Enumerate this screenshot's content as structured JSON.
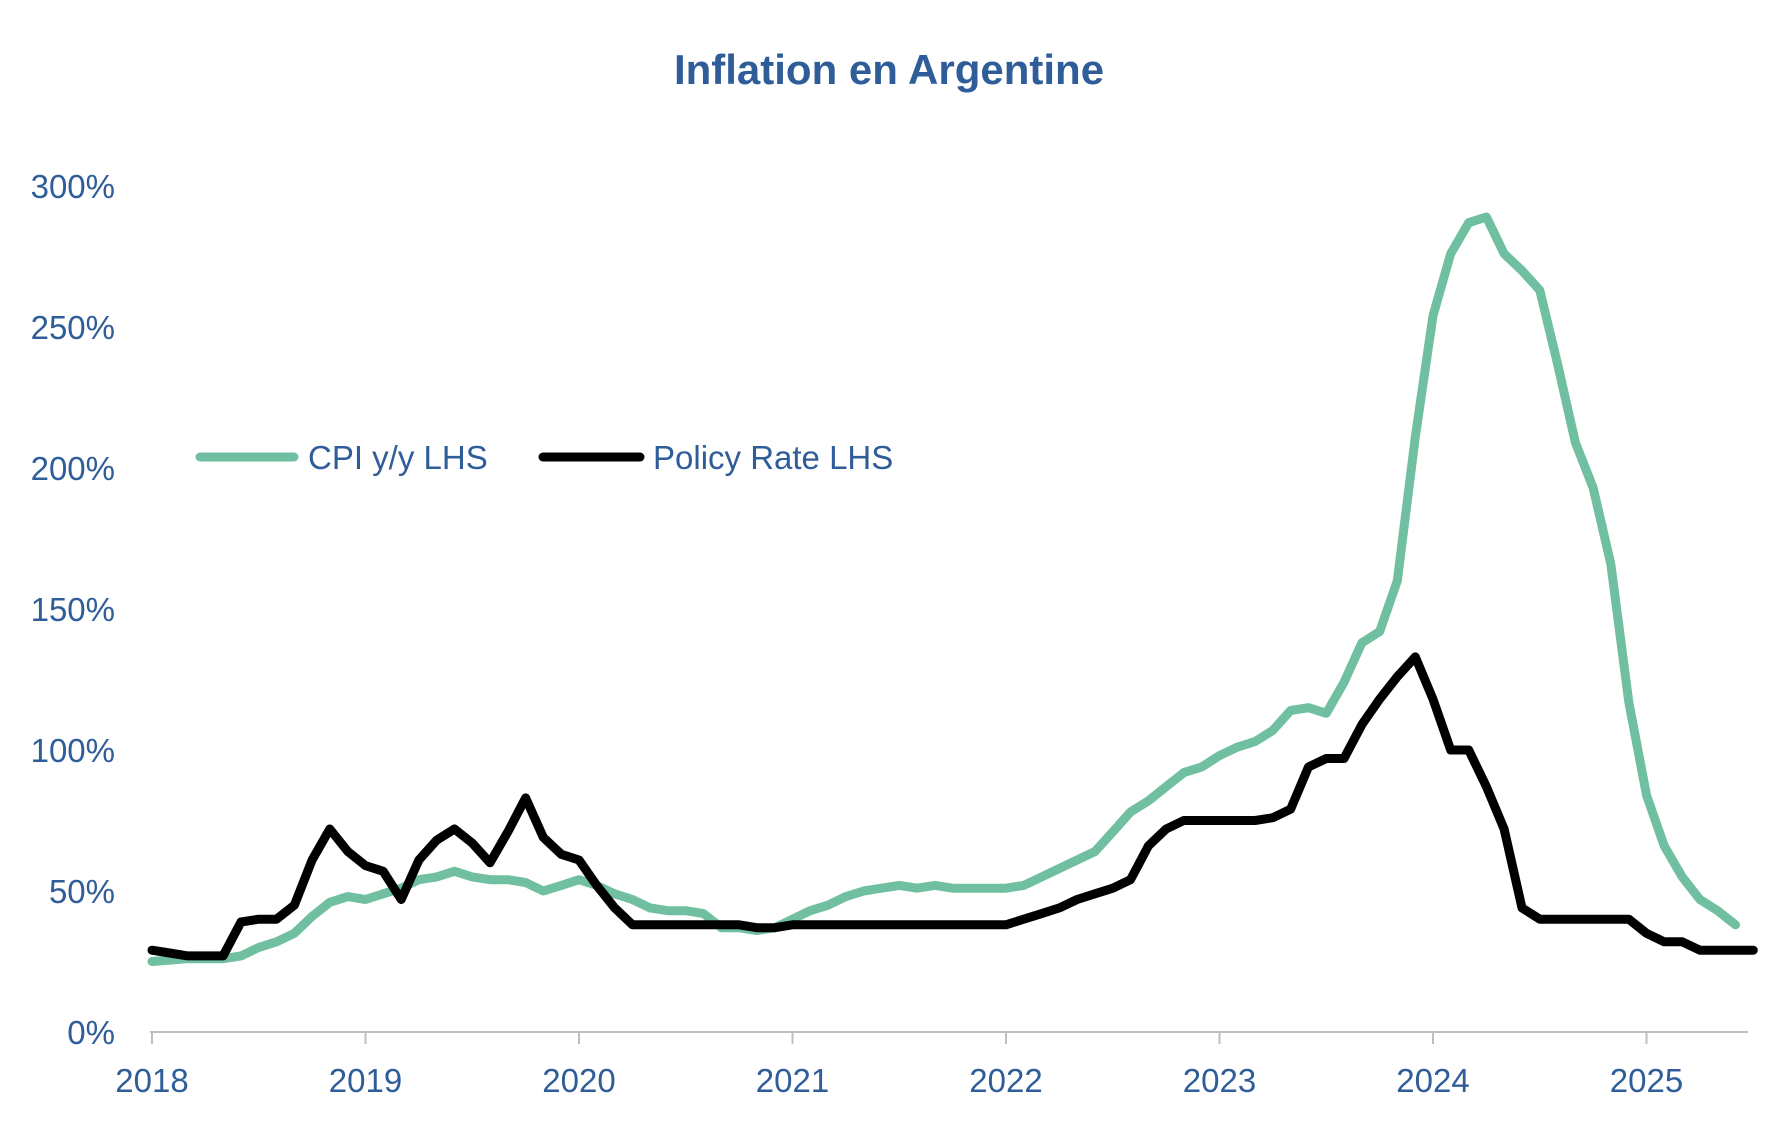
{
  "chart_data": {
    "type": "line",
    "title": "Inflation en Argentine",
    "xlabel": "",
    "ylabel": "",
    "x_ticks": [
      "2018",
      "2019",
      "2020",
      "2021",
      "2022",
      "2023",
      "2024",
      "2025"
    ],
    "y_ticks": [
      "0%",
      "50%",
      "100%",
      "150%",
      "200%",
      "250%",
      "300%"
    ],
    "ylim": [
      0,
      300
    ],
    "xlim": [
      2018.0,
      2025.5
    ],
    "grid": false,
    "legend_position": "upper-left",
    "colors": {
      "title": "#2f5d99",
      "axis_text": "#2f5d99",
      "axis_line": "#bfbfbf"
    },
    "series": [
      {
        "name": "CPI y/y LHS",
        "color": "#6fbfa0",
        "x": [
          2018.0,
          2018.083,
          2018.167,
          2018.25,
          2018.333,
          2018.417,
          2018.5,
          2018.583,
          2018.667,
          2018.75,
          2018.833,
          2018.917,
          2019.0,
          2019.083,
          2019.167,
          2019.25,
          2019.333,
          2019.417,
          2019.5,
          2019.583,
          2019.667,
          2019.75,
          2019.833,
          2019.917,
          2020.0,
          2020.083,
          2020.167,
          2020.25,
          2020.333,
          2020.417,
          2020.5,
          2020.583,
          2020.667,
          2020.75,
          2020.833,
          2020.917,
          2021.0,
          2021.083,
          2021.167,
          2021.25,
          2021.333,
          2021.417,
          2021.5,
          2021.583,
          2021.667,
          2021.75,
          2021.833,
          2021.917,
          2022.0,
          2022.083,
          2022.167,
          2022.25,
          2022.333,
          2022.417,
          2022.5,
          2022.583,
          2022.667,
          2022.75,
          2022.833,
          2022.917,
          2023.0,
          2023.083,
          2023.167,
          2023.25,
          2023.333,
          2023.417,
          2023.5,
          2023.583,
          2023.667,
          2023.75,
          2023.833,
          2023.917,
          2024.0,
          2024.083,
          2024.167,
          2024.25,
          2024.333,
          2024.417,
          2024.5,
          2024.583,
          2024.667,
          2024.75,
          2024.833,
          2024.917,
          2025.0,
          2025.083,
          2025.167,
          2025.25,
          2025.333,
          2025.417
        ],
        "values": [
          25,
          25.5,
          26,
          26,
          26,
          27,
          30,
          32,
          35,
          41,
          46,
          48,
          47,
          49,
          51,
          54,
          55,
          57,
          55,
          54,
          54,
          53,
          50,
          52,
          54,
          52,
          49,
          47,
          44,
          43,
          43,
          42,
          37,
          37,
          36,
          37,
          40,
          43,
          45,
          48,
          50,
          51,
          52,
          51,
          52,
          51,
          51,
          51,
          51,
          52,
          55,
          58,
          61,
          64,
          71,
          78,
          82,
          87,
          92,
          94,
          98,
          101,
          103,
          107,
          114,
          115,
          113,
          124,
          138,
          142,
          160,
          211,
          254,
          276,
          287,
          289,
          276,
          270,
          263,
          237,
          209,
          193,
          166,
          117,
          84,
          66,
          55,
          47,
          43,
          38
        ]
      },
      {
        "name": "Policy Rate LHS",
        "color": "#000000",
        "x": [
          2018.0,
          2018.083,
          2018.167,
          2018.25,
          2018.333,
          2018.417,
          2018.5,
          2018.583,
          2018.667,
          2018.75,
          2018.833,
          2018.917,
          2019.0,
          2019.083,
          2019.167,
          2019.25,
          2019.333,
          2019.417,
          2019.5,
          2019.583,
          2019.667,
          2019.75,
          2019.833,
          2019.917,
          2020.0,
          2020.083,
          2020.167,
          2020.25,
          2020.333,
          2020.417,
          2020.5,
          2020.583,
          2020.667,
          2020.75,
          2020.833,
          2020.917,
          2021.0,
          2021.083,
          2021.167,
          2021.25,
          2021.333,
          2021.417,
          2021.5,
          2021.583,
          2021.667,
          2021.75,
          2021.833,
          2021.917,
          2022.0,
          2022.083,
          2022.167,
          2022.25,
          2022.333,
          2022.417,
          2022.5,
          2022.583,
          2022.667,
          2022.75,
          2022.833,
          2022.917,
          2023.0,
          2023.083,
          2023.167,
          2023.25,
          2023.333,
          2023.417,
          2023.5,
          2023.583,
          2023.667,
          2023.75,
          2023.833,
          2023.917,
          2024.0,
          2024.083,
          2024.167,
          2024.25,
          2024.333,
          2024.417,
          2024.5,
          2024.583,
          2024.667,
          2024.75,
          2024.833,
          2024.917,
          2025.0,
          2025.083,
          2025.167,
          2025.25,
          2025.333,
          2025.417,
          2025.5
        ],
        "values": [
          29,
          28,
          27,
          27,
          27,
          39,
          40,
          40,
          45,
          61,
          72,
          64,
          59,
          57,
          47,
          61,
          68,
          72,
          67,
          60,
          71,
          83,
          69,
          63,
          61,
          52,
          44,
          38,
          38,
          38,
          38,
          38,
          38,
          38,
          37,
          37,
          38,
          38,
          38,
          38,
          38,
          38,
          38,
          38,
          38,
          38,
          38,
          38,
          38,
          40,
          42,
          44,
          47,
          49,
          51,
          54,
          66,
          72,
          75,
          75,
          75,
          75,
          75,
          76,
          79,
          94,
          97,
          97,
          109,
          118,
          126,
          133,
          118,
          100,
          100,
          87,
          72,
          44,
          40,
          40,
          40,
          40,
          40,
          40,
          35,
          32,
          32,
          29,
          29,
          29,
          29
        ]
      }
    ]
  }
}
